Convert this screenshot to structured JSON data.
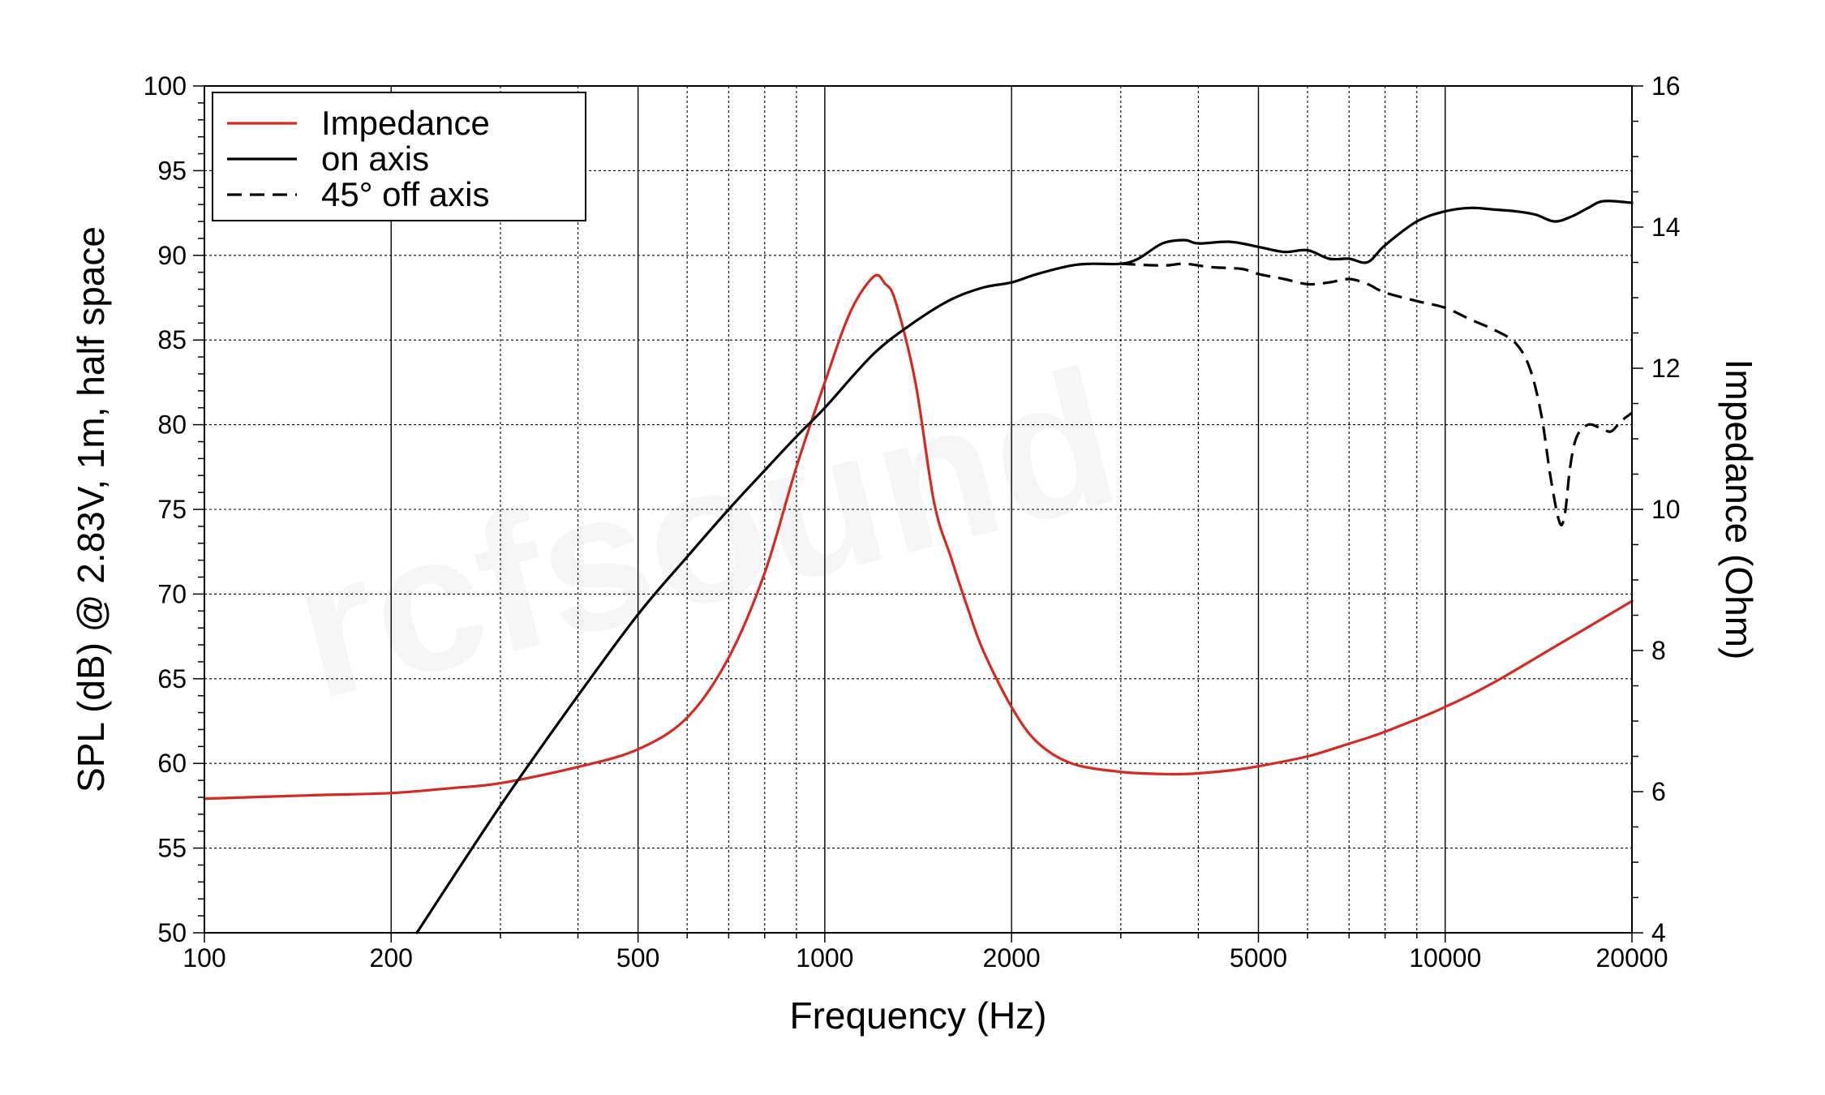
{
  "chart_data": {
    "type": "line",
    "xlabel": "Frequency (Hz)",
    "ylabel": "SPL (dB) @ 2.83V, 1m, half space",
    "y2label": "Impedance (Ohm)",
    "x_scale": "log",
    "xlim": [
      100,
      20000
    ],
    "ylim": [
      50,
      100
    ],
    "y2lim": [
      4,
      16
    ],
    "grid": true,
    "legend_position": "top-left",
    "watermark": "rcfsound",
    "x_ticks": [
      100,
      200,
      500,
      1000,
      2000,
      5000,
      10000,
      20000
    ],
    "x_tick_labels": [
      "100",
      "200",
      "500",
      "1000",
      "2000",
      "5000",
      "10000",
      "20000"
    ],
    "y_ticks": [
      50,
      55,
      60,
      65,
      70,
      75,
      80,
      85,
      90,
      95,
      100
    ],
    "y2_ticks": [
      4,
      6,
      8,
      10,
      12,
      14,
      16
    ],
    "series": [
      {
        "name": "Impedance",
        "axis": "right",
        "color": "#d42a22",
        "dash": "solid",
        "x": [
          100,
          150,
          200,
          250,
          300,
          400,
          500,
          600,
          700,
          800,
          900,
          1000,
          1100,
          1200,
          1250,
          1300,
          1400,
          1500,
          1600,
          1700,
          1800,
          2000,
          2200,
          2500,
          3000,
          3500,
          3800,
          4000,
          4500,
          5000,
          6000,
          7000,
          8000,
          10000,
          12000,
          15000,
          20000
        ],
        "values": [
          5.9,
          5.95,
          5.98,
          6.05,
          6.12,
          6.35,
          6.6,
          7.05,
          7.9,
          9.1,
          10.6,
          11.8,
          12.8,
          13.3,
          13.2,
          12.95,
          11.8,
          10.1,
          9.3,
          8.6,
          8.0,
          7.2,
          6.7,
          6.4,
          6.28,
          6.25,
          6.25,
          6.26,
          6.3,
          6.36,
          6.5,
          6.68,
          6.85,
          7.2,
          7.55,
          8.05,
          8.7
        ]
      },
      {
        "name": "on axis",
        "axis": "left",
        "color": "#000000",
        "dash": "solid",
        "x": [
          220,
          300,
          400,
          500,
          600,
          700,
          800,
          900,
          1000,
          1200,
          1400,
          1600,
          1800,
          2000,
          2200,
          2500,
          2700,
          3000,
          3200,
          3500,
          3800,
          4000,
          4500,
          5000,
          5500,
          6000,
          6500,
          7000,
          7500,
          8000,
          9000,
          10000,
          11000,
          12000,
          13000,
          14000,
          15000,
          16000,
          17000,
          18000,
          20000
        ],
        "values": [
          50,
          57.5,
          64,
          68.8,
          72.2,
          75,
          77.3,
          79.3,
          81,
          84.2,
          86.1,
          87.4,
          88.1,
          88.4,
          88.9,
          89.4,
          89.5,
          89.5,
          89.8,
          90.7,
          90.9,
          90.7,
          90.8,
          90.5,
          90.2,
          90.3,
          89.8,
          89.8,
          89.6,
          90.6,
          92.0,
          92.6,
          92.8,
          92.7,
          92.6,
          92.4,
          92.0,
          92.3,
          92.8,
          93.2,
          93.1
        ]
      },
      {
        "name": "45° off axis",
        "axis": "left",
        "color": "#000000",
        "dash": "dashed",
        "x": [
          3000,
          3500,
          3800,
          4200,
          4700,
          5000,
          5500,
          6000,
          6500,
          7000,
          7500,
          8000,
          9000,
          10000,
          11000,
          12000,
          13000,
          13700,
          14300,
          14800,
          15300,
          15600,
          15900,
          16300,
          17000,
          17800,
          18500,
          19200,
          20000
        ],
        "values": [
          89.5,
          89.4,
          89.5,
          89.3,
          89.2,
          88.9,
          88.6,
          88.3,
          88.4,
          88.6,
          88.3,
          87.8,
          87.3,
          86.9,
          86.2,
          85.6,
          84.8,
          83.3,
          80.5,
          76.8,
          74.2,
          74.8,
          77.5,
          79.3,
          80.0,
          79.8,
          79.6,
          80.2,
          80.7
        ]
      }
    ]
  }
}
